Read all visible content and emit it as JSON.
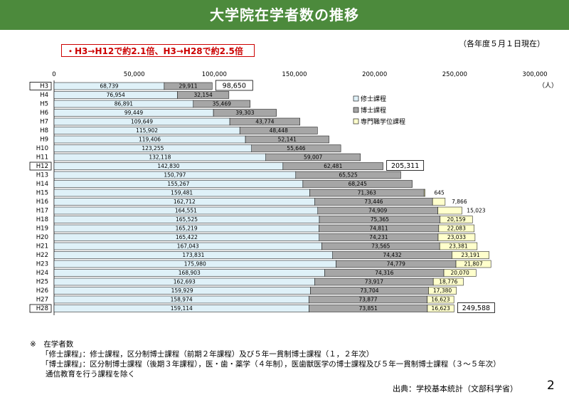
{
  "header": {
    "title": "大学院在学者数の推移"
  },
  "as_of": "（各年度５月１日現在）",
  "callout": "・H3→H12で約2.1倍、H3→H28で約2.5倍",
  "notes": {
    "mark": "※",
    "title": "在学者数",
    "line1": "「修士課程」：修士課程，区分制博士課程（前期２年課程）及び５年一貫制博士課程（１，２年次）",
    "line2": "「博士課程」：区分制博士課程（後期３年課程），医・歯・薬学（４年制），医歯獣医学の博士課程及び５年一貫制博士課程（３～５年次）",
    "line3": "通信教育を行う課程を除く"
  },
  "source": "出典：学校基本統計（文部科学省）",
  "page_number": "2",
  "colors": {
    "header": "#4c8a3c",
    "master": "#dff1f8",
    "doctor": "#a6a6a6",
    "professional": "#ffffcc",
    "highlight": "#1a1a5e"
  },
  "chart_data": {
    "type": "bar",
    "orientation": "horizontal",
    "stacked": true,
    "unit": "（人）",
    "xlim": [
      0,
      300000
    ],
    "x_ticks": [
      "0",
      "50,000",
      "100,000",
      "150,000",
      "200,000",
      "250,000",
      "300,000"
    ],
    "categories": [
      "H3",
      "H4",
      "H5",
      "H6",
      "H7",
      "H8",
      "H9",
      "H10",
      "H11",
      "H12",
      "H13",
      "H14",
      "H15",
      "H16",
      "H17",
      "H18",
      "H19",
      "H20",
      "H21",
      "H22",
      "H23",
      "H24",
      "H25",
      "H26",
      "H27",
      "H28"
    ],
    "highlighted": [
      "H3",
      "H12",
      "H28"
    ],
    "legend_position": "right",
    "series": [
      {
        "name": "修士課程",
        "values": [
          68739,
          76954,
          86891,
          99449,
          109649,
          115902,
          119406,
          123255,
          132118,
          142830,
          150797,
          155267,
          159481,
          162712,
          164551,
          165525,
          165219,
          165422,
          167043,
          173831,
          175980,
          168903,
          162693,
          159929,
          158974,
          159114
        ],
        "labels": [
          "68,739",
          "76,954",
          "86,891",
          "99,449",
          "109,649",
          "115,902",
          "119,406",
          "123,255",
          "132,118",
          "142,830",
          "150,797",
          "155,267",
          "159,481",
          "162,712",
          "164,551",
          "165,525",
          "165,219",
          "165,422",
          "167,043",
          "173,831",
          "175,980",
          "168,903",
          "162,693",
          "159,929",
          "158,974",
          "159,114"
        ]
      },
      {
        "name": "博士課程",
        "values": [
          29911,
          32154,
          35469,
          39303,
          43774,
          48448,
          52141,
          55646,
          59007,
          62481,
          65525,
          68245,
          71363,
          73446,
          74909,
          75365,
          74811,
          74231,
          73565,
          74432,
          74779,
          74316,
          73917,
          73704,
          73877,
          73851
        ],
        "labels": [
          "29,911",
          "32,154",
          "35,469",
          "39,303",
          "43,774",
          "48,448",
          "52,141",
          "55,646",
          "59,007",
          "62,481",
          "65,525",
          "68,245",
          "71,363",
          "73,446",
          "74,909",
          "75,365",
          "74,811",
          "74,231",
          "73,565",
          "74,432",
          "74,779",
          "74,316",
          "73,917",
          "73,704",
          "73,877",
          "73,851"
        ]
      },
      {
        "name": "専門職学位課程",
        "values": [
          0,
          0,
          0,
          0,
          0,
          0,
          0,
          0,
          0,
          0,
          0,
          0,
          645,
          7866,
          15023,
          20159,
          22083,
          23033,
          23381,
          23191,
          21807,
          20070,
          18776,
          17380,
          16623,
          16623
        ],
        "labels": [
          "",
          "",
          "",
          "",
          "",
          "",
          "",
          "",
          "",
          "",
          "",
          "",
          "645",
          "7,866",
          "15,023",
          "20,159",
          "22,083",
          "23,033",
          "23,381",
          "23,191",
          "21,807",
          "20,070",
          "18,776",
          "17,380",
          "16,623",
          "16,623"
        ]
      }
    ],
    "total_labels": [
      {
        "category": "H3",
        "label": "98,650"
      },
      {
        "category": "H12",
        "label": "205,311"
      },
      {
        "category": "H28",
        "label": "249,588"
      }
    ]
  }
}
